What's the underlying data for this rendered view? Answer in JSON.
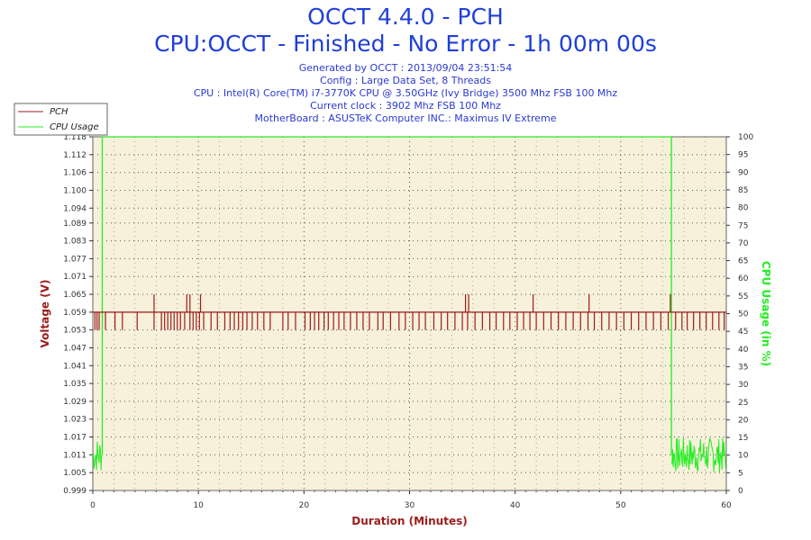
{
  "header": {
    "title": "OCCT 4.4.0 - PCH",
    "subtitle": "CPU:OCCT - Finished - No Error - 1h 00m 00s",
    "info": [
      "Generated by OCCT : 2013/09/04 23:51:54",
      "Config : Large Data Set, 8 Threads",
      "CPU : Intel(R) Core(TM) i7-3770K CPU @ 3.50GHz (Ivy Bridge) 3500 Mhz FSB 100 Mhz",
      "Current clock : 3902 Mhz FSB 100 Mhz",
      "MotherBoard : ASUSTeK Computer INC.: Maximus IV Extreme"
    ]
  },
  "colors": {
    "pch": "#9b1c1c",
    "cpu_usage": "#22ee22",
    "plot_bg": "#f7f0da",
    "axis_label_left": "#9b1c1c",
    "axis_label_right": "#22ee22",
    "xlabel": "#9b1c1c"
  },
  "chart_data": {
    "type": "line",
    "title": "OCCT 4.4.0 - PCH",
    "xlabel": "Duration (Minutes)",
    "ylabel": "Voltage (V)",
    "y2label": "CPU Usage (in %)",
    "xlim": [
      0,
      60
    ],
    "ylim": [
      0.999,
      1.118
    ],
    "y2lim": [
      0,
      100
    ],
    "x_ticks": [
      0,
      10,
      20,
      30,
      40,
      50,
      60
    ],
    "y_ticks": [
      0.999,
      1.005,
      1.011,
      1.017,
      1.023,
      1.029,
      1.035,
      1.041,
      1.047,
      1.053,
      1.059,
      1.065,
      1.071,
      1.077,
      1.083,
      1.089,
      1.094,
      1.1,
      1.106,
      1.112,
      1.118
    ],
    "y_tick_labels": [
      "0.999",
      "1.005",
      "1.011",
      "1.017",
      "1.023",
      "1.029",
      "1.035",
      "1.041",
      "1.047",
      "1.053",
      "1.059",
      "1.065",
      "1.071",
      "1.077",
      "1.083",
      "1.089",
      "1.094",
      "1.100",
      "1.106",
      "1.112",
      "1.118"
    ],
    "y2_ticks": [
      0,
      5,
      10,
      15,
      20,
      25,
      30,
      35,
      40,
      45,
      50,
      55,
      60,
      65,
      70,
      75,
      80,
      85,
      90,
      95,
      100
    ],
    "grid": true,
    "legend": "top-left",
    "series": [
      {
        "name": "PCH",
        "axis": "left",
        "baseline": 1.059,
        "dips_to": 1.053,
        "dip_times": [
          0.2,
          0.4,
          0.6,
          1.2,
          2.1,
          2.8,
          4.2,
          5.8,
          6.5,
          6.8,
          7.1,
          7.4,
          7.7,
          8.0,
          8.3,
          8.7,
          9.2,
          9.5,
          9.8,
          10.1,
          10.5,
          11.2,
          11.8,
          12.5,
          13.0,
          13.4,
          13.8,
          14.2,
          14.6,
          15.1,
          15.6,
          16.2,
          16.8,
          18.0,
          18.5,
          19.2,
          20.1,
          20.6,
          21.0,
          21.4,
          21.9,
          22.3,
          22.8,
          23.3,
          23.8,
          24.4,
          25.0,
          25.6,
          26.2,
          27.0,
          27.5,
          28.2,
          29.0,
          29.6,
          30.3,
          30.9,
          31.5,
          32.3,
          33.0,
          33.6,
          34.3,
          35.0,
          35.5,
          36.2,
          36.9,
          37.6,
          38.2,
          38.9,
          39.5,
          40.2,
          40.8,
          41.4,
          42.0,
          42.7,
          43.4,
          44.1,
          44.8,
          45.5,
          46.2,
          46.9,
          47.5,
          48.2,
          48.9,
          49.6,
          50.3,
          51.0,
          51.7,
          52.4,
          53.1,
          53.8,
          54.5,
          55.2,
          55.8,
          56.3,
          56.9,
          57.5,
          58.1,
          58.7,
          59.3,
          59.8
        ],
        "spikes_to": 1.065,
        "spike_times": [
          5.8,
          8.9,
          9.2,
          10.2,
          35.3,
          35.6,
          41.7,
          47.0,
          54.7
        ]
      },
      {
        "name": "CPU Usage",
        "axis": "right",
        "x": [
          0,
          0.9,
          0.9,
          54.8,
          54.8,
          60
        ],
        "y": [
          10,
          10,
          100,
          100,
          10,
          10
        ],
        "idle_range": [
          5,
          15
        ]
      }
    ]
  }
}
